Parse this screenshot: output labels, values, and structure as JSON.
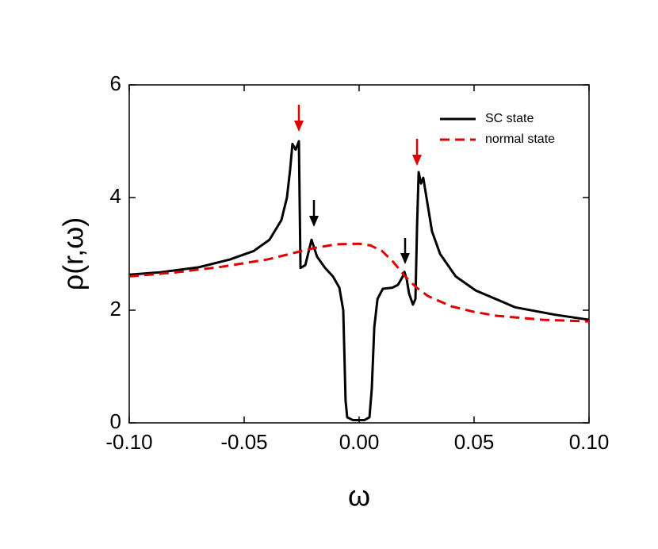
{
  "chart_data": {
    "type": "line",
    "xlabel": "ω",
    "ylabel": "ρ(r,ω)",
    "xlim": [
      -0.1,
      0.1
    ],
    "ylim": [
      0,
      6
    ],
    "xticks": [
      {
        "value": -0.1,
        "label": "-0.10"
      },
      -0.05,
      {
        "value": 0,
        "label": "0.00"
      },
      0.05,
      {
        "value": 0.1,
        "label": "0.10"
      }
    ],
    "yticks": [
      0,
      2,
      4,
      6
    ],
    "legend": "upper right",
    "series": [
      {
        "name": "SC state",
        "color": "#000000",
        "dashed": false,
        "x": [
          -0.1,
          -0.0872,
          -0.07,
          -0.0562,
          -0.0459,
          -0.039,
          -0.0338,
          -0.0314,
          -0.03,
          -0.029,
          -0.0276,
          -0.0262,
          -0.0255,
          -0.0234,
          -0.0207,
          -0.0183,
          -0.0148,
          -0.0114,
          -0.0086,
          -0.0069,
          -0.0059,
          -0.0052,
          -0.0028,
          0.0024,
          0.0045,
          0.0055,
          0.0066,
          0.008,
          0.0103,
          0.0145,
          0.0169,
          0.019,
          0.0197,
          0.0207,
          0.0217,
          0.0234,
          0.0245,
          0.0252,
          0.0259,
          0.0269,
          0.0279,
          0.0293,
          0.0317,
          0.0352,
          0.042,
          0.0507,
          0.068,
          0.0852,
          0.1
        ],
        "values": [
          2.63,
          2.67,
          2.76,
          2.9,
          3.05,
          3.25,
          3.6,
          4.0,
          4.5,
          4.95,
          4.85,
          5.0,
          2.75,
          2.8,
          3.25,
          2.95,
          2.75,
          2.6,
          2.4,
          2.0,
          0.4,
          0.1,
          0.05,
          0.05,
          0.1,
          0.6,
          1.7,
          2.2,
          2.38,
          2.4,
          2.45,
          2.6,
          2.68,
          2.55,
          2.3,
          2.1,
          2.2,
          3.5,
          4.45,
          4.25,
          4.35,
          4.0,
          3.4,
          3.0,
          2.6,
          2.35,
          2.05,
          1.92,
          1.83
        ]
      },
      {
        "name": "normal state",
        "color": "#e00000",
        "dashed": true,
        "x": [
          -0.1,
          -0.08,
          -0.06,
          -0.04,
          -0.03,
          -0.02,
          -0.01,
          0,
          0.005,
          0.01,
          0.015,
          0.02,
          0.025,
          0.03,
          0.04,
          0.05,
          0.06,
          0.08,
          0.1
        ],
        "values": [
          2.6,
          2.67,
          2.77,
          2.9,
          3.0,
          3.1,
          3.17,
          3.18,
          3.15,
          3.05,
          2.85,
          2.6,
          2.4,
          2.25,
          2.07,
          1.97,
          1.9,
          1.83,
          1.8
        ]
      }
    ]
  }
}
